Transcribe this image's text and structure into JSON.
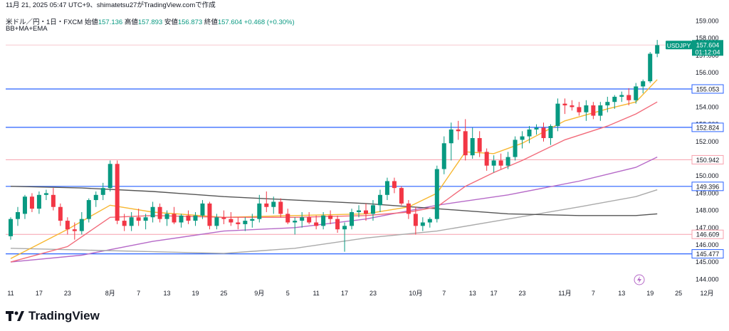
{
  "header": {
    "timestamp_line": "11月 21, 2025 05:47 UTC+9、shimatetsu27がTradingView.comで作成",
    "symbol": "米ドル／円・1日・FXCM",
    "open_label": "始値",
    "open": "157.136",
    "high_label": "高値",
    "high": "157.893",
    "low_label": "安値",
    "low": "156.873",
    "close_label": "終値",
    "close": "157.604",
    "change": "+0.468 (+0.30%)",
    "indicators": "BB+MA+EMA"
  },
  "brand": {
    "name": "TradingView"
  },
  "colors": {
    "up": "#089981",
    "down": "#f23645",
    "hline": "#2962ff",
    "pinkline": "#f7a1ad"
  },
  "chart_data": {
    "type": "candlestick",
    "title": "",
    "ylim": [
      143.6,
      159.6
    ],
    "y_ticks": [
      144.0,
      145.0,
      146.0,
      147.0,
      148.0,
      149.0,
      150.0,
      151.0,
      152.0,
      153.0,
      154.0,
      155.0,
      156.0,
      157.0,
      158.0,
      159.0
    ],
    "x_ticks": [
      {
        "label": "11",
        "i": 0
      },
      {
        "label": "17",
        "i": 4
      },
      {
        "label": "23",
        "i": 8
      },
      {
        "label": "8月",
        "i": 14
      },
      {
        "label": "7",
        "i": 18
      },
      {
        "label": "13",
        "i": 22
      },
      {
        "label": "19",
        "i": 26
      },
      {
        "label": "25",
        "i": 30
      },
      {
        "label": "9月",
        "i": 35
      },
      {
        "label": "5",
        "i": 39
      },
      {
        "label": "11",
        "i": 43
      },
      {
        "label": "17",
        "i": 47
      },
      {
        "label": "23",
        "i": 51
      },
      {
        "label": "10月",
        "i": 57
      },
      {
        "label": "7",
        "i": 61
      },
      {
        "label": "13",
        "i": 65
      },
      {
        "label": "17",
        "i": 68
      },
      {
        "label": "23",
        "i": 72
      },
      {
        "label": "11月",
        "i": 78
      },
      {
        "label": "7",
        "i": 82
      },
      {
        "label": "13",
        "i": 86
      },
      {
        "label": "19",
        "i": 90
      },
      {
        "label": "25",
        "i": 94
      },
      {
        "label": "12月",
        "i": 98
      }
    ],
    "horizontal_levels": [
      {
        "value": 155.053,
        "label": "155.053",
        "style": "blue"
      },
      {
        "value": 152.824,
        "label": "152.824",
        "style": "blue"
      },
      {
        "value": 150.942,
        "label": "150.942",
        "style": "pink"
      },
      {
        "value": 149.396,
        "label": "149.396",
        "style": "blue"
      },
      {
        "value": 146.609,
        "label": "146.609",
        "style": "pink"
      },
      {
        "value": 145.477,
        "label": "145.477",
        "style": "blue"
      }
    ],
    "current_price": {
      "value": 157.604,
      "symbol": "USDJPY",
      "price": "157.604",
      "countdown": "01:12:04"
    },
    "candles": [
      [
        146.5,
        147.6,
        146.3,
        147.5
      ],
      [
        147.5,
        148.2,
        147.1,
        147.9
      ],
      [
        147.8,
        148.9,
        147.5,
        148.8
      ],
      [
        148.8,
        149.0,
        147.9,
        148.1
      ],
      [
        148.1,
        149.1,
        147.8,
        148.9
      ],
      [
        148.9,
        149.2,
        148.6,
        149.0
      ],
      [
        148.9,
        149.3,
        148.0,
        148.2
      ],
      [
        148.2,
        148.4,
        147.1,
        147.4
      ],
      [
        147.4,
        147.6,
        146.6,
        146.9
      ],
      [
        146.9,
        147.3,
        146.3,
        146.8
      ],
      [
        146.8,
        147.9,
        146.6,
        147.5
      ],
      [
        147.5,
        148.7,
        147.3,
        148.6
      ],
      [
        148.6,
        149.1,
        148.2,
        148.9
      ],
      [
        148.9,
        149.6,
        148.6,
        149.3
      ],
      [
        149.3,
        150.9,
        149.1,
        150.7
      ],
      [
        150.7,
        150.9,
        147.2,
        147.4
      ],
      [
        147.4,
        147.8,
        146.8,
        147.1
      ],
      [
        147.1,
        147.9,
        146.8,
        147.6
      ],
      [
        147.6,
        148.1,
        147.1,
        147.4
      ],
      [
        147.4,
        147.8,
        146.9,
        147.6
      ],
      [
        147.6,
        148.5,
        147.3,
        148.2
      ],
      [
        148.2,
        148.4,
        147.3,
        147.5
      ],
      [
        147.5,
        148.0,
        147.1,
        147.8
      ],
      [
        147.8,
        148.2,
        147.2,
        147.3
      ],
      [
        147.3,
        147.8,
        147.0,
        147.7
      ],
      [
        147.7,
        148.0,
        147.2,
        147.4
      ],
      [
        147.4,
        147.9,
        147.1,
        147.7
      ],
      [
        147.7,
        148.6,
        147.5,
        148.4
      ],
      [
        148.4,
        148.5,
        146.9,
        147.1
      ],
      [
        147.1,
        147.8,
        146.9,
        147.6
      ],
      [
        147.6,
        148.0,
        147.2,
        147.5
      ],
      [
        147.5,
        147.9,
        147.1,
        147.3
      ],
      [
        147.3,
        147.6,
        146.9,
        147.2
      ],
      [
        147.2,
        147.6,
        146.8,
        147.4
      ],
      [
        147.4,
        147.8,
        147.0,
        147.5
      ],
      [
        147.5,
        148.9,
        147.3,
        148.4
      ],
      [
        148.4,
        149.1,
        147.9,
        148.2
      ],
      [
        148.2,
        148.8,
        147.8,
        148.5
      ],
      [
        148.5,
        148.7,
        147.6,
        147.8
      ],
      [
        147.8,
        148.1,
        147.2,
        147.3
      ],
      [
        147.3,
        147.6,
        146.6,
        147.4
      ],
      [
        147.4,
        147.9,
        147.0,
        147.6
      ],
      [
        147.6,
        147.9,
        147.2,
        147.3
      ],
      [
        147.3,
        147.7,
        146.9,
        147.1
      ],
      [
        147.1,
        147.9,
        146.9,
        147.7
      ],
      [
        147.7,
        148.0,
        147.2,
        147.5
      ],
      [
        147.5,
        147.7,
        146.7,
        146.9
      ],
      [
        146.9,
        147.3,
        145.6,
        147.1
      ],
      [
        147.1,
        148.1,
        146.9,
        147.9
      ],
      [
        147.9,
        148.3,
        147.6,
        148.0
      ],
      [
        148.0,
        148.4,
        147.4,
        147.8
      ],
      [
        147.8,
        148.6,
        147.4,
        148.3
      ],
      [
        148.3,
        149.2,
        147.9,
        148.9
      ],
      [
        148.9,
        149.9,
        148.6,
        149.7
      ],
      [
        149.7,
        149.9,
        149.0,
        149.3
      ],
      [
        149.3,
        149.4,
        148.3,
        148.4
      ],
      [
        148.4,
        148.6,
        147.5,
        147.8
      ],
      [
        147.8,
        148.2,
        146.6,
        147.1
      ],
      [
        147.1,
        147.6,
        146.8,
        147.3
      ],
      [
        147.3,
        147.6,
        147.0,
        147.5
      ],
      [
        147.5,
        150.6,
        147.3,
        150.4
      ],
      [
        150.4,
        152.3,
        150.1,
        151.9
      ],
      [
        151.9,
        153.1,
        150.9,
        152.7
      ],
      [
        152.7,
        153.2,
        152.1,
        152.6
      ],
      [
        152.6,
        153.3,
        150.9,
        151.2
      ],
      [
        151.2,
        152.8,
        151.0,
        152.2
      ],
      [
        152.2,
        152.6,
        151.1,
        151.4
      ],
      [
        151.4,
        151.6,
        150.3,
        150.6
      ],
      [
        150.6,
        151.2,
        150.2,
        150.9
      ],
      [
        150.9,
        151.3,
        150.4,
        150.6
      ],
      [
        150.6,
        151.4,
        150.4,
        151.1
      ],
      [
        151.1,
        152.3,
        150.9,
        152.1
      ],
      [
        152.1,
        152.6,
        151.6,
        152.3
      ],
      [
        152.3,
        152.9,
        151.9,
        152.7
      ],
      [
        152.7,
        153.0,
        152.4,
        152.8
      ],
      [
        152.8,
        153.1,
        152.0,
        152.2
      ],
      [
        152.2,
        153.0,
        151.8,
        152.9
      ],
      [
        152.9,
        154.5,
        152.6,
        154.2
      ],
      [
        154.2,
        154.5,
        153.6,
        154.1
      ],
      [
        154.1,
        154.4,
        153.8,
        154.0
      ],
      [
        154.0,
        154.3,
        153.5,
        153.7
      ],
      [
        153.7,
        154.4,
        153.2,
        154.1
      ],
      [
        154.1,
        154.3,
        153.3,
        153.5
      ],
      [
        153.5,
        154.3,
        153.2,
        154.1
      ],
      [
        154.1,
        154.6,
        153.7,
        154.3
      ],
      [
        154.3,
        154.7,
        153.9,
        154.6
      ],
      [
        154.6,
        154.9,
        154.3,
        154.7
      ],
      [
        154.7,
        155.1,
        154.1,
        154.4
      ],
      [
        154.4,
        155.4,
        154.2,
        155.2
      ],
      [
        155.2,
        155.6,
        154.8,
        155.5
      ],
      [
        155.5,
        157.2,
        155.4,
        157.1
      ],
      [
        157.1,
        157.9,
        156.9,
        157.6
      ]
    ],
    "indicator_lines": [
      {
        "name": "BB upper",
        "color": "#b66ac8",
        "points": [
          [
            0,
            145.0
          ],
          [
            10,
            145.4
          ],
          [
            20,
            146.2
          ],
          [
            30,
            146.8
          ],
          [
            40,
            147.0
          ],
          [
            50,
            147.5
          ],
          [
            60,
            148.3
          ],
          [
            70,
            148.9
          ],
          [
            80,
            149.7
          ],
          [
            88,
            150.5
          ],
          [
            91,
            151.1
          ]
        ]
      },
      {
        "name": "BB lower",
        "color": "#aaaaaa",
        "points": [
          [
            0,
            145.8
          ],
          [
            10,
            145.7
          ],
          [
            20,
            145.6
          ],
          [
            30,
            145.5
          ],
          [
            40,
            145.8
          ],
          [
            50,
            146.4
          ],
          [
            60,
            146.8
          ],
          [
            70,
            147.5
          ],
          [
            80,
            148.2
          ],
          [
            88,
            148.8
          ],
          [
            91,
            149.2
          ]
        ]
      },
      {
        "name": "MA long",
        "color": "#555555",
        "points": [
          [
            0,
            149.4
          ],
          [
            10,
            149.3
          ],
          [
            20,
            149.1
          ],
          [
            30,
            148.8
          ],
          [
            40,
            148.6
          ],
          [
            50,
            148.4
          ],
          [
            60,
            148.1
          ],
          [
            70,
            147.8
          ],
          [
            80,
            147.7
          ],
          [
            88,
            147.7
          ],
          [
            91,
            147.8
          ]
        ]
      },
      {
        "name": "EMA short",
        "color": "#f7b731",
        "points": [
          [
            0,
            145.2
          ],
          [
            8,
            146.9
          ],
          [
            14,
            148.3
          ],
          [
            20,
            147.9
          ],
          [
            30,
            147.6
          ],
          [
            40,
            147.7
          ],
          [
            50,
            147.8
          ],
          [
            56,
            148.2
          ],
          [
            60,
            149.0
          ],
          [
            64,
            151.4
          ],
          [
            68,
            151.3
          ],
          [
            72,
            151.9
          ],
          [
            78,
            153.2
          ],
          [
            84,
            153.9
          ],
          [
            88,
            154.3
          ],
          [
            91,
            155.6
          ]
        ]
      },
      {
        "name": "EMA mid",
        "color": "#f26b7a",
        "points": [
          [
            0,
            145.0
          ],
          [
            8,
            145.9
          ],
          [
            14,
            147.6
          ],
          [
            20,
            147.7
          ],
          [
            30,
            147.6
          ],
          [
            40,
            147.6
          ],
          [
            50,
            147.7
          ],
          [
            56,
            147.9
          ],
          [
            60,
            148.2
          ],
          [
            64,
            149.4
          ],
          [
            68,
            150.2
          ],
          [
            72,
            150.9
          ],
          [
            78,
            152.1
          ],
          [
            84,
            152.9
          ],
          [
            88,
            153.6
          ],
          [
            91,
            154.3
          ]
        ]
      }
    ]
  }
}
